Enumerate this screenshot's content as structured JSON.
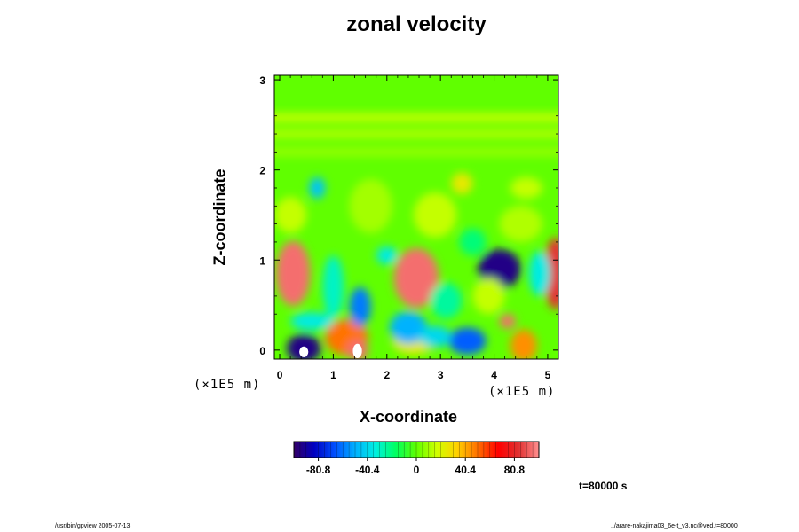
{
  "chart_data": {
    "type": "heatmap",
    "title": "zonal velocity",
    "xlabel": "X-coordinate",
    "ylabel": "Z-coordinate",
    "x_unit": "(×1E5 m)",
    "y_unit": "(×1E5 m)",
    "xlim": [
      -0.1,
      5.2
    ],
    "ylim": [
      -0.1,
      3.05
    ],
    "x_ticks": [
      "0",
      "1",
      "2",
      "3",
      "4",
      "5"
    ],
    "y_ticks": [
      "0",
      "1",
      "2",
      "3"
    ],
    "background_value": 0,
    "features": [
      {
        "x": 0.25,
        "z": 0.85,
        "value": 95,
        "rx": 0.32,
        "rz": 0.36
      },
      {
        "x": 2.55,
        "z": 0.8,
        "value": 95,
        "rx": 0.42,
        "rz": 0.33
      },
      {
        "x": 5.15,
        "z": 0.85,
        "value": 85,
        "rx": 0.22,
        "rz": 0.4
      },
      {
        "x": 4.25,
        "z": 0.32,
        "value": 95,
        "rx": 0.15,
        "rz": 0.08
      },
      {
        "x": 4.55,
        "z": 0.05,
        "value": 45,
        "rx": 0.25,
        "rz": 0.18
      },
      {
        "x": 1.25,
        "z": 0.14,
        "value": 50,
        "rx": 0.4,
        "rz": 0.2
      },
      {
        "x": 1.45,
        "z": 0.0,
        "value": 95,
        "rx": 0.2,
        "rz": 0.12
      },
      {
        "x": 2.5,
        "z": 0.1,
        "value": 25,
        "rx": 0.4,
        "rz": 0.15
      },
      {
        "x": 4.1,
        "z": 0.9,
        "value": -95,
        "rx": 0.4,
        "rz": 0.22
      },
      {
        "x": 4.85,
        "z": 0.85,
        "value": -35,
        "rx": 0.2,
        "rz": 0.25
      },
      {
        "x": 0.45,
        "z": 0.02,
        "value": -95,
        "rx": 0.32,
        "rz": 0.16
      },
      {
        "x": 1.5,
        "z": 0.48,
        "value": -60,
        "rx": 0.2,
        "rz": 0.22
      },
      {
        "x": 1.0,
        "z": 0.7,
        "value": -30,
        "rx": 0.2,
        "rz": 0.35
      },
      {
        "x": 2.4,
        "z": 0.25,
        "value": -50,
        "rx": 0.35,
        "rz": 0.18
      },
      {
        "x": 3.5,
        "z": 0.1,
        "value": -65,
        "rx": 0.35,
        "rz": 0.15
      },
      {
        "x": 2.9,
        "z": 0.15,
        "value": -40,
        "rx": 0.3,
        "rz": 0.12
      },
      {
        "x": 0.6,
        "z": 0.32,
        "value": -35,
        "rx": 0.4,
        "rz": 0.1
      },
      {
        "x": 3.1,
        "z": 0.55,
        "value": -25,
        "rx": 0.3,
        "rz": 0.2
      },
      {
        "x": 0.7,
        "z": 1.8,
        "value": -45,
        "rx": 0.15,
        "rz": 0.12
      },
      {
        "x": 2.0,
        "z": 1.05,
        "value": -35,
        "rx": 0.2,
        "rz": 0.1
      },
      {
        "x": 3.6,
        "z": 1.2,
        "value": -20,
        "rx": 0.25,
        "rz": 0.15
      },
      {
        "x": 3.4,
        "z": 1.85,
        "value": 25,
        "rx": 0.2,
        "rz": 0.12
      },
      {
        "x": 0.2,
        "z": 1.5,
        "value": 15,
        "rx": 0.3,
        "rz": 0.2
      },
      {
        "x": 2.9,
        "z": 1.5,
        "value": 15,
        "rx": 0.4,
        "rz": 0.25
      },
      {
        "x": 4.5,
        "z": 1.4,
        "value": 12,
        "rx": 0.4,
        "rz": 0.2
      },
      {
        "x": 1.7,
        "z": 1.6,
        "value": 10,
        "rx": 0.4,
        "rz": 0.3
      },
      {
        "x": 4.6,
        "z": 1.8,
        "value": 15,
        "rx": 0.3,
        "rz": 0.12
      },
      {
        "x": 3.9,
        "z": 0.6,
        "value": 15,
        "rx": 0.3,
        "rz": 0.2
      }
    ],
    "bands": [
      {
        "z": 2.58,
        "value": 15,
        "rz": 0.05
      },
      {
        "z": 2.4,
        "value": 12,
        "rz": 0.05
      },
      {
        "z": 2.2,
        "value": 8,
        "rz": 0.05
      }
    ],
    "masked_regions": [
      {
        "x": 0.45,
        "z": -0.02,
        "rx": 0.13,
        "rz": 0.06
      },
      {
        "x": 1.45,
        "z": -0.01,
        "rx": 0.13,
        "rz": 0.08
      }
    ],
    "colorbar": {
      "min": -101,
      "max": 101,
      "tick_values": [
        -80.8,
        -40.4,
        0,
        40.4,
        80.8
      ],
      "tick_labels": [
        "-80.8",
        "-40.4",
        "0",
        "40.4",
        "80.8"
      ],
      "colors": [
        "#330066",
        "#0000c0",
        "#0050ff",
        "#00b0ff",
        "#00f0e0",
        "#00ff60",
        "#60ff00",
        "#d0ff00",
        "#ffd000",
        "#ff7000",
        "#ff0000",
        "#e03030",
        "#ff9090"
      ]
    }
  },
  "time_label": "t=80000 s",
  "footer_left": "/usr/bin/gpview 2005-07-13",
  "footer_right": "../arare-nakajima03_6e-t_v3,nc@ved,t=80000"
}
